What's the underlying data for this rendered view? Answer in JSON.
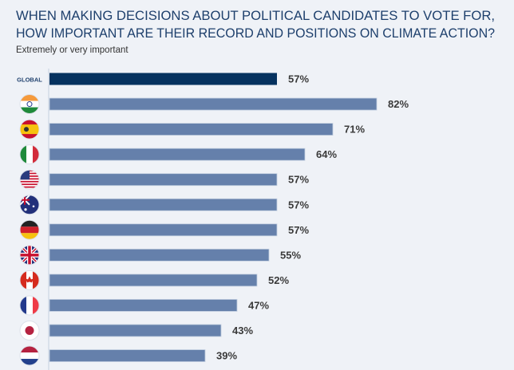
{
  "chart_data": {
    "type": "bar",
    "orientation": "horizontal",
    "title_lines": [
      "WHEN MAKING DECISIONS ABOUT POLITICAL CANDIDATES TO VOTE FOR,",
      "HOW IMPORTANT ARE THEIR RECORD AND POSITIONS ON CLIMATE ACTION?"
    ],
    "subtitle": "Extremely or very important",
    "categories": [
      {
        "label": "GLOBAL",
        "icon": null
      },
      {
        "label": "",
        "icon": "india-flag-icon"
      },
      {
        "label": "",
        "icon": "spain-flag-icon"
      },
      {
        "label": "",
        "icon": "italy-flag-icon"
      },
      {
        "label": "",
        "icon": "usa-flag-icon"
      },
      {
        "label": "",
        "icon": "australia-flag-icon"
      },
      {
        "label": "",
        "icon": "germany-flag-icon"
      },
      {
        "label": "",
        "icon": "uk-flag-icon"
      },
      {
        "label": "",
        "icon": "canada-flag-icon"
      },
      {
        "label": "",
        "icon": "france-flag-icon"
      },
      {
        "label": "",
        "icon": "japan-flag-icon"
      },
      {
        "label": "",
        "icon": "netherlands-flag-icon"
      }
    ],
    "values": [
      57,
      82,
      71,
      64,
      57,
      57,
      57,
      55,
      52,
      47,
      43,
      39
    ],
    "value_labels": [
      "57%",
      "82%",
      "71%",
      "64%",
      "57%",
      "57%",
      "57%",
      "55%",
      "52%",
      "47%",
      "43%",
      "39%"
    ],
    "unit": "%",
    "xlim": [
      0,
      100
    ],
    "grid": false,
    "legend": "none",
    "colors": {
      "global": "#06325f",
      "country": "#6580ab",
      "label": "#3a3a3a",
      "title": "#1d3f6c"
    }
  }
}
